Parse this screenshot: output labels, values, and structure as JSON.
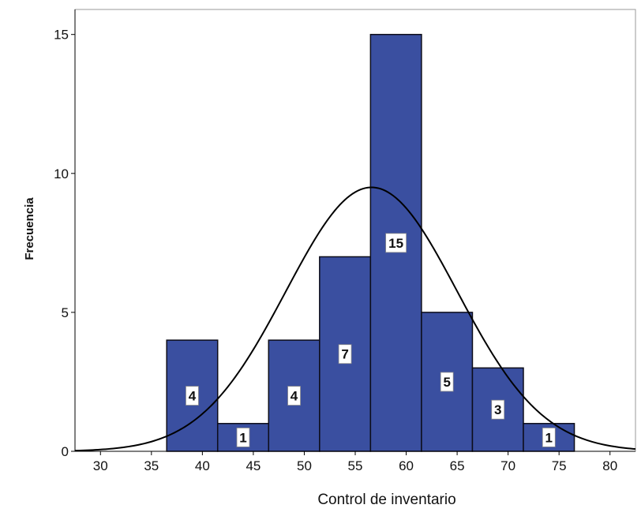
{
  "chart_data": {
    "type": "bar",
    "subtype": "histogram",
    "xlabel": "Control de inventario",
    "ylabel": "Frecuencia",
    "xlim": [
      27.5,
      82.5
    ],
    "ylim": [
      0,
      15.9
    ],
    "x_ticks": [
      30,
      35,
      40,
      45,
      50,
      55,
      60,
      65,
      70,
      75,
      80
    ],
    "y_ticks": [
      0,
      5,
      10,
      15
    ],
    "bin_width": 5,
    "bins": [
      {
        "start": 36.5,
        "end": 41.5,
        "value": 4
      },
      {
        "start": 41.5,
        "end": 46.5,
        "value": 1
      },
      {
        "start": 46.5,
        "end": 51.5,
        "value": 4
      },
      {
        "start": 51.5,
        "end": 56.5,
        "value": 7
      },
      {
        "start": 56.5,
        "end": 61.5,
        "value": 15
      },
      {
        "start": 61.5,
        "end": 66.5,
        "value": 5
      },
      {
        "start": 66.5,
        "end": 71.5,
        "value": 3
      },
      {
        "start": 71.5,
        "end": 76.5,
        "value": 1
      }
    ],
    "data_labels": [
      "4",
      "1",
      "4",
      "7",
      "15",
      "5",
      "3",
      "1"
    ],
    "normal_curve": {
      "mean": 56.6,
      "std_dev": 8.4,
      "n": 40
    },
    "bar_color": "#3a4fa0",
    "bar_edge_color": "#0d0d1a",
    "curve_color": "#000000",
    "grid": false
  }
}
